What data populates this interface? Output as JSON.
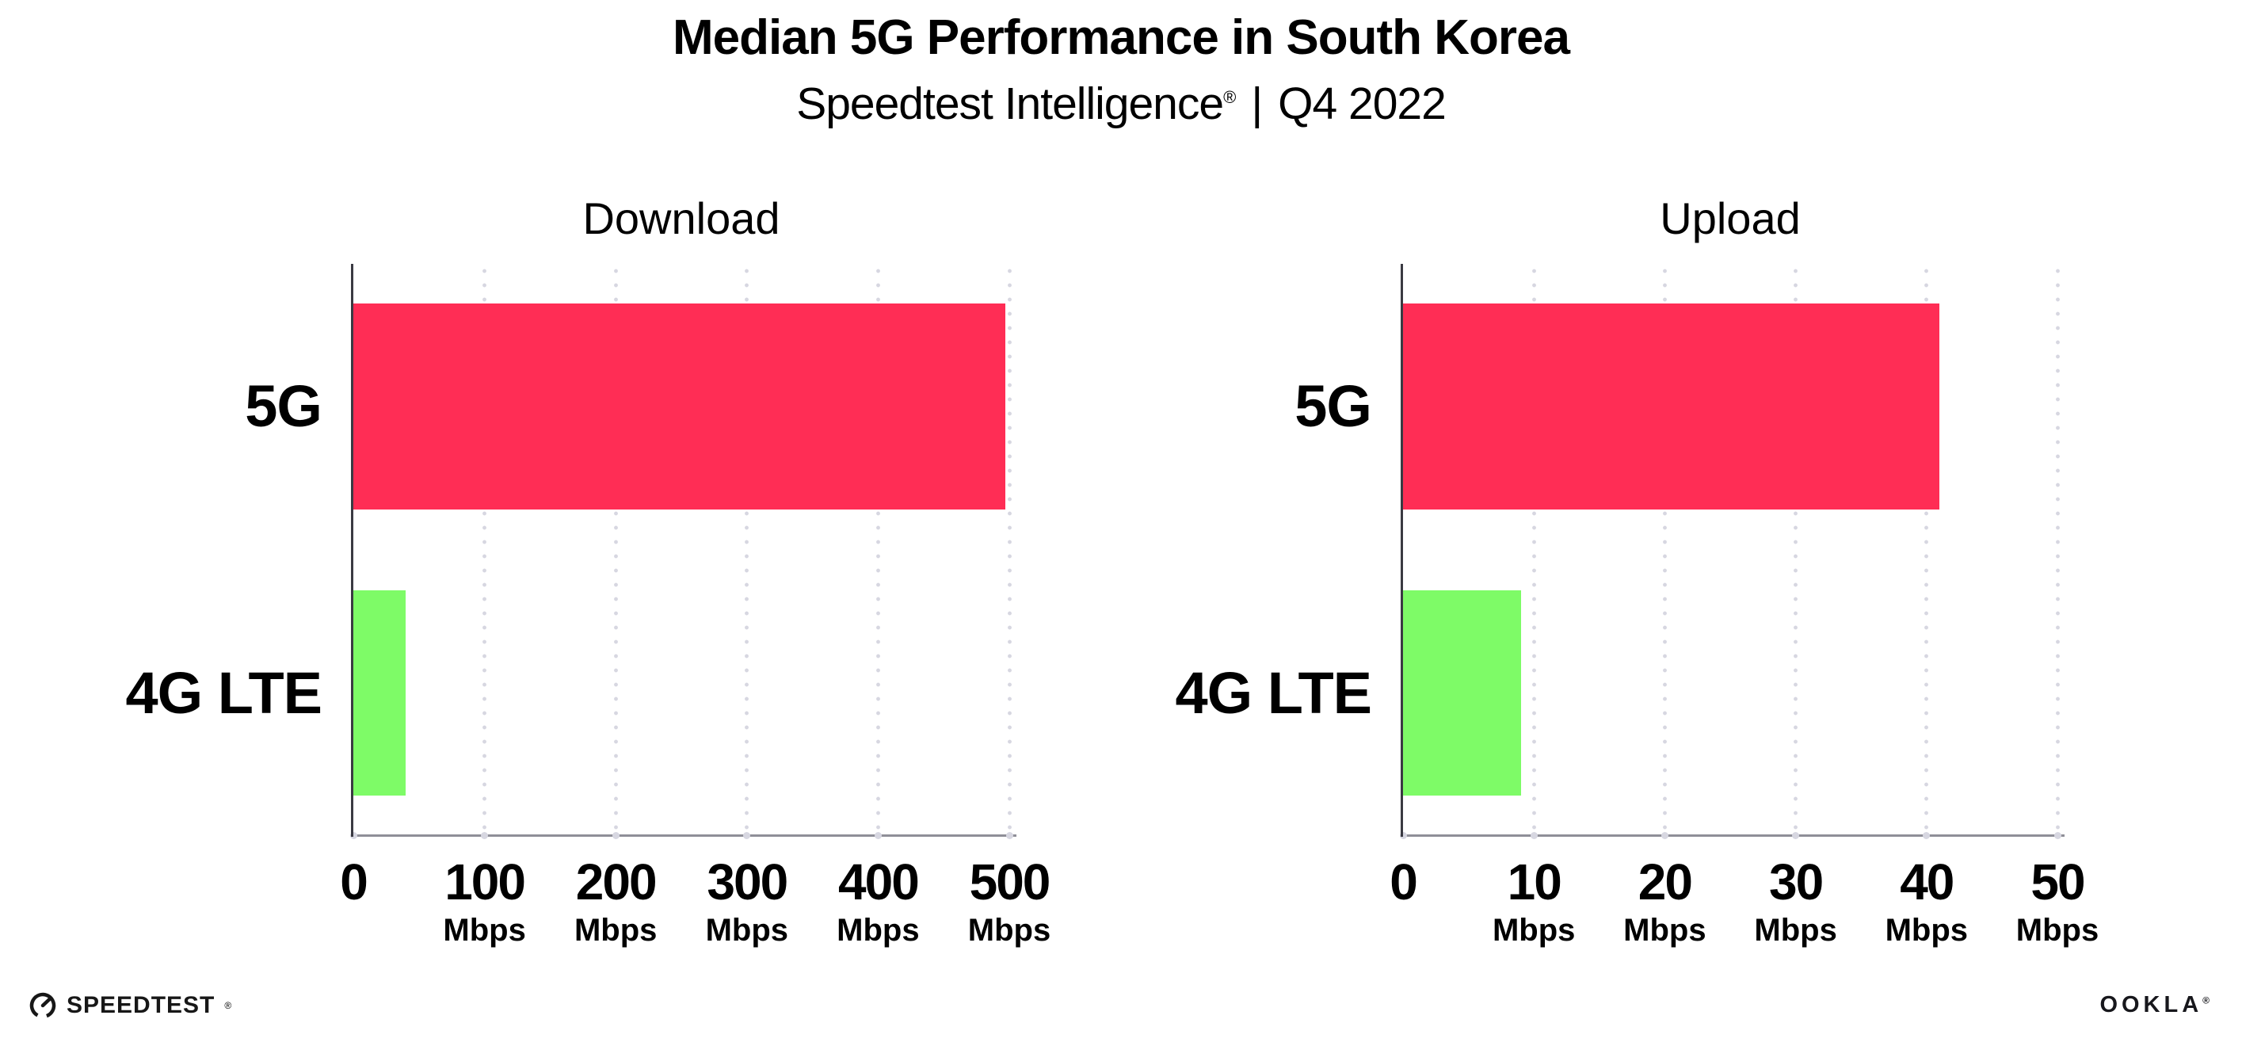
{
  "header": {
    "title": "Median 5G Performance in South Korea",
    "subtitle_brand": "Speedtest Intelligence",
    "subtitle_reg": "®",
    "subtitle_separator": "|",
    "subtitle_period": "Q4 2022"
  },
  "footer": {
    "speedtest_wordmark": "SPEEDTEST",
    "speedtest_trademark": "®",
    "ookla_wordmark": "OOKLA",
    "ookla_trademark": "®"
  },
  "colors": {
    "bar_5g": "#FF2D55",
    "bar_4g": "#7EFB67",
    "axis_line": "#3A3A42",
    "baseline": "#8F8F98",
    "gridline_dot": "#D7D7E1",
    "text": "#000000"
  },
  "chart_data": [
    {
      "type": "bar",
      "orientation": "horizontal",
      "title": "Download",
      "categories": [
        "5G",
        "4G LTE"
      ],
      "values": [
        497,
        40
      ],
      "unit": "Mbps",
      "xlim": [
        0,
        500
      ],
      "xticks": [
        0,
        100,
        200,
        300,
        400,
        500
      ],
      "tick_unit": "Mbps",
      "grid": "dotted-vertical",
      "legend": "none",
      "bar_colors": [
        "#FF2D55",
        "#7EFB67"
      ]
    },
    {
      "type": "bar",
      "orientation": "horizontal",
      "title": "Upload",
      "categories": [
        "5G",
        "4G LTE"
      ],
      "values": [
        41,
        9
      ],
      "unit": "Mbps",
      "xlim": [
        0,
        50
      ],
      "xticks": [
        0,
        10,
        20,
        30,
        40,
        50
      ],
      "tick_unit": "Mbps",
      "grid": "dotted-vertical",
      "legend": "none",
      "bar_colors": [
        "#FF2D55",
        "#7EFB67"
      ]
    }
  ]
}
